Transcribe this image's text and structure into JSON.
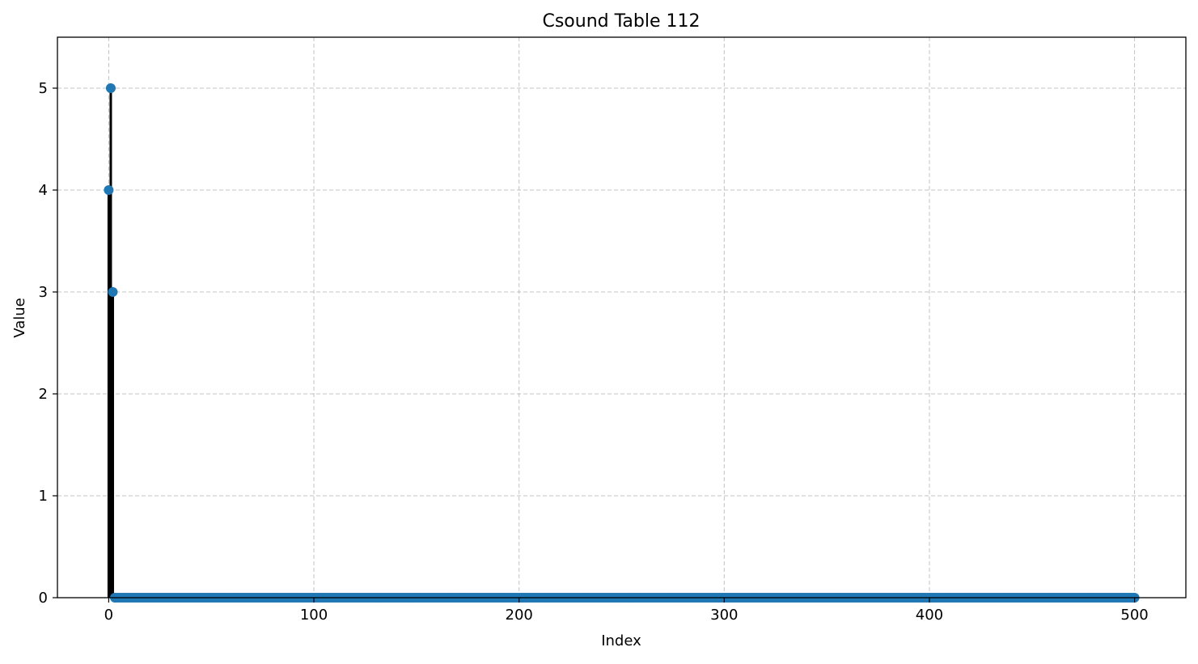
{
  "chart_data": {
    "type": "stem",
    "title": "Csound Table 112",
    "xlabel": "Index",
    "ylabel": "Value",
    "xlim": [
      -25,
      525
    ],
    "ylim": [
      0,
      5.5
    ],
    "xticks": [
      0,
      100,
      200,
      300,
      400,
      500
    ],
    "yticks": [
      0,
      1,
      2,
      3,
      4,
      5
    ],
    "grid": true,
    "grid_style": "dashed",
    "marker_color": "#1f77b4",
    "stem_color": "#000000",
    "length": 501,
    "nonzero_points": [
      {
        "x": 0,
        "y": 4
      },
      {
        "x": 1,
        "y": 5
      },
      {
        "x": 2,
        "y": 3
      }
    ],
    "default_value": 0
  }
}
